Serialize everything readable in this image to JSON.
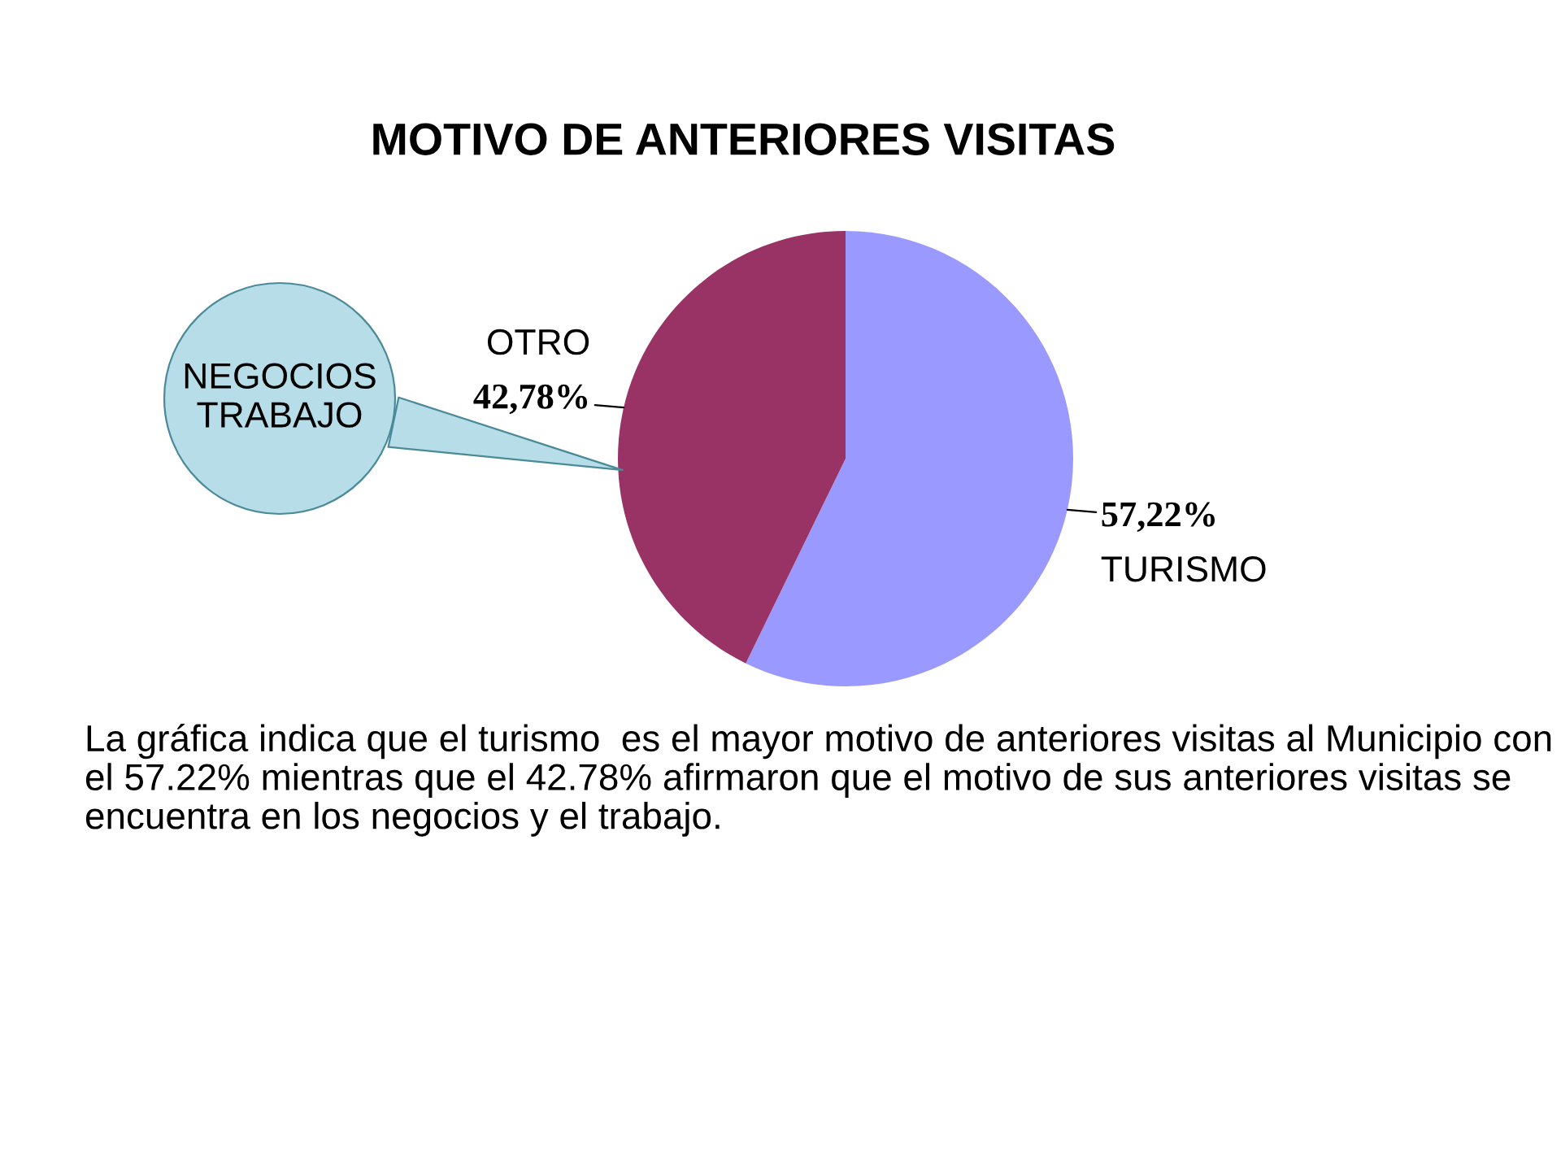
{
  "chart_data": {
    "type": "pie",
    "title": "MOTIVO DE ANTERIORES VISITAS",
    "categories": [
      "TURISMO",
      "OTRO"
    ],
    "values": [
      57.22,
      42.78
    ],
    "colors": [
      "#9999ff",
      "#993366"
    ],
    "value_labels": [
      "57,22%",
      "42,78%"
    ],
    "annotations": [
      "NEGOCIOS\nTRABAJO",
      "La gráfica indica que el turismo  es el mayor motivo de anteriores visitas al Municipio con el 57.22% mientras que el 42.78% afirmaron que el motivo de sus anteriores visitas se encuentra en los negocios y el trabajo."
    ]
  }
}
